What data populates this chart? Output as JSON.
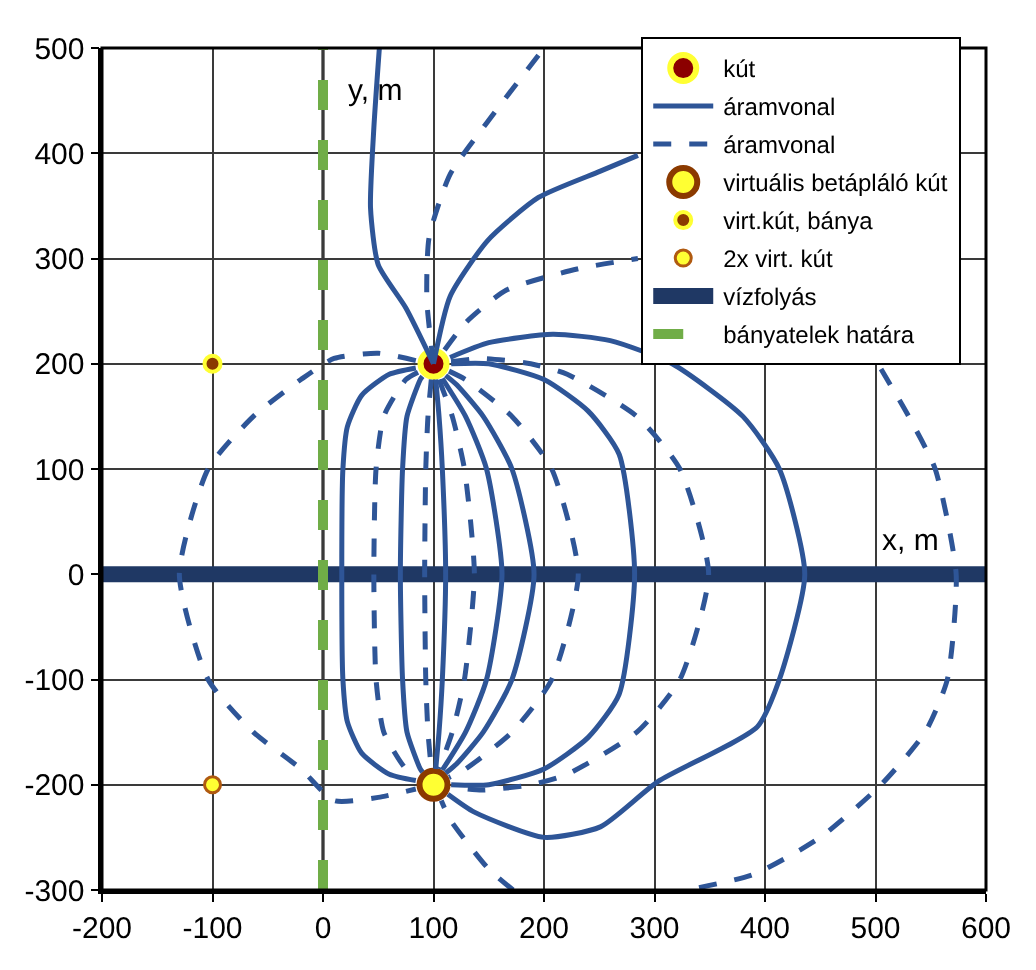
{
  "chart_data": {
    "type": "line",
    "xlabel": "x, m",
    "ylabel": "y, m",
    "xlim": [
      -200,
      600
    ],
    "xticks": [
      -200,
      -100,
      0,
      100,
      200,
      300,
      400,
      500,
      600
    ],
    "ylim": [
      -300,
      500
    ],
    "yticks": [
      -300,
      -200,
      -100,
      0,
      100,
      200,
      300,
      400,
      500
    ],
    "grid": true,
    "legend": "top right",
    "series": [
      {
        "type": "scatter",
        "name": "kút",
        "marker": "circle",
        "color": "#8b0000",
        "x": [
          100
        ],
        "values": [
          200
        ]
      },
      {
        "name": "áramvonal",
        "color": "#2e5597",
        "line_style": "solid",
        "x": [
          100,
          75,
          50,
          43,
          46,
          51
        ],
        "values": [
          200,
          253,
          294,
          348,
          424,
          500
        ]
      },
      {
        "name": "áramvonal",
        "color": "#2e5597",
        "line_style": "dashed",
        "x": [
          100,
          94,
          96,
          115,
          149,
          200
        ],
        "values": [
          200,
          260,
          320,
          380,
          430,
          500
        ]
      },
      {
        "type": "scatter",
        "name": "virtuális betápláló kút",
        "marker": "circle",
        "color": "#ffff33",
        "x": [
          100
        ],
        "values": [
          -200
        ]
      },
      {
        "type": "scatter",
        "name": "virt.kút, bánya",
        "marker": "circle",
        "color": "#8b3a00",
        "x": [
          -100
        ],
        "values": [
          200
        ]
      },
      {
        "type": "scatter",
        "name": "2x virt. kút",
        "marker": "circle",
        "color": "#ffff33",
        "x": [
          -100
        ],
        "values": [
          -200
        ]
      },
      {
        "name": "vízfolyás",
        "color": "#1f3864",
        "line_style": "solid",
        "x": [
          -200,
          600
        ],
        "values": [
          0,
          0
        ]
      },
      {
        "name": "bányatelek határa",
        "color": "#70ad47",
        "line_style": "dashed",
        "x": [
          0,
          0
        ],
        "values": [
          -300,
          500
        ]
      },
      {
        "color": "#2e5597",
        "line_style": "solid",
        "x": [
          100,
          115,
          149,
          195,
          251,
          285
        ],
        "values": [
          200,
          264,
          317,
          358,
          383,
          398
        ]
      },
      {
        "color": "#2e5597",
        "line_style": "solid",
        "x": [
          84,
          60,
          35,
          22,
          18,
          17,
          18,
          22,
          35,
          60,
          84
        ],
        "values": [
          196,
          190,
          170,
          140,
          100,
          0,
          -100,
          -140,
          -170,
          -190,
          -196
        ]
      },
      {
        "color": "#2e5597",
        "line_style": "dashed",
        "x": [
          86,
          75,
          55,
          48,
          46,
          48,
          55,
          75,
          86
        ],
        "values": [
          192,
          185,
          150,
          100,
          0,
          -100,
          -150,
          -185,
          -192
        ]
      },
      {
        "color": "#2e5597",
        "line_style": "solid",
        "x": [
          90,
          88,
          76,
          72,
          70,
          72,
          76,
          88,
          90
        ],
        "values": [
          188,
          185,
          150,
          100,
          0,
          -100,
          -150,
          -185,
          -188
        ]
      },
      {
        "color": "#2e5597",
        "line_style": "dashed",
        "x": [
          98,
          95,
          93,
          92,
          93,
          95,
          98
        ],
        "values": [
          185,
          150,
          100,
          0,
          -100,
          -150,
          -185
        ]
      },
      {
        "color": "#2e5597",
        "line_style": "solid",
        "x": [
          102,
          105,
          108,
          111,
          108,
          105,
          102
        ],
        "values": [
          185,
          150,
          100,
          0,
          -100,
          -150,
          -185
        ]
      },
      {
        "color": "#2e5597",
        "line_style": "dashed",
        "x": [
          105,
          117,
          128,
          137,
          128,
          117,
          105
        ],
        "values": [
          185,
          150,
          100,
          0,
          -100,
          -150,
          -185
        ]
      },
      {
        "color": "#2e5597",
        "line_style": "solid",
        "x": [
          108,
          129,
          148,
          162,
          148,
          129,
          108
        ],
        "values": [
          186,
          150,
          100,
          0,
          -100,
          -150,
          -186
        ]
      },
      {
        "color": "#2e5597",
        "line_style": "solid",
        "x": [
          111,
          121,
          145,
          171,
          191,
          171,
          145,
          121,
          111
        ],
        "values": [
          189,
          180,
          150,
          100,
          0,
          -100,
          -150,
          -180,
          -189
        ]
      },
      {
        "color": "#2e5597",
        "line_style": "dashed",
        "x": [
          114,
          129,
          171,
          207,
          231,
          207,
          171,
          129,
          114
        ],
        "values": [
          193,
          185,
          150,
          100,
          0,
          -100,
          -150,
          -185,
          -193
        ]
      },
      {
        "color": "#2e5597",
        "line_style": "solid",
        "x": [
          116,
          150,
          200,
          240,
          268,
          282,
          268,
          240,
          200,
          150,
          116
        ],
        "values": [
          200,
          200,
          185,
          155,
          114,
          0,
          -114,
          -155,
          -185,
          -200,
          -200
        ]
      },
      {
        "color": "#2e5597",
        "line_style": "dashed",
        "x": [
          116,
          144,
          188,
          221,
          284,
          323,
          349,
          323,
          284,
          221,
          188,
          144,
          116
        ],
        "values": [
          202,
          205,
          200,
          190,
          150,
          100,
          0,
          -100,
          -150,
          -190,
          -200,
          -205,
          -202
        ]
      },
      {
        "color": "#2e5597",
        "line_style": "solid",
        "x": [
          115,
          150,
          208,
          260,
          316,
          380,
          413,
          436,
          413,
          393,
          303,
          251,
          200,
          137,
          113
        ],
        "values": [
          206,
          220,
          228,
          222,
          200,
          150,
          100,
          0,
          -100,
          -145,
          -197,
          -240,
          -250,
          -226,
          -209
        ]
      },
      {
        "color": "#2e5597",
        "line_style": "dashed",
        "x": [
          110,
          130,
          166,
          230,
          285,
          null,
          505,
          530,
          554,
          573,
          565,
          545,
          505,
          450,
          390,
          330,
          null,
          172,
          149,
          115,
          107
        ],
        "values": [
          213,
          240,
          270,
          290,
          300,
          null,
          195,
          150,
          100,
          0,
          -100,
          -150,
          -200,
          -250,
          -285,
          -300,
          null,
          -300,
          -279,
          -233,
          -215
        ]
      },
      {
        "color": "#2e5597",
        "line_style": "dashed",
        "x": [
          84,
          50,
          10,
          -20,
          -63,
          -104,
          -130,
          -104,
          -63,
          -20,
          10,
          50,
          84
        ],
        "values": [
          203,
          210,
          205,
          185,
          150,
          100,
          0,
          -100,
          -150,
          -185,
          -215,
          -212,
          -204
        ]
      }
    ]
  }
}
